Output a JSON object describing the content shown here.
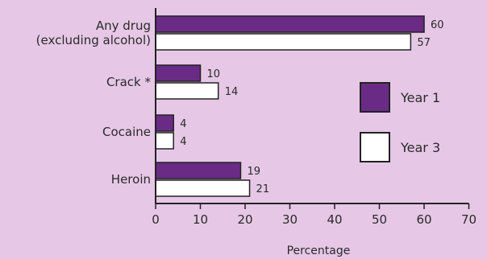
{
  "chart_data": {
    "type": "bar",
    "orientation": "horizontal",
    "categories": [
      [
        "Any drug",
        "(excluding alcohol)"
      ],
      [
        "Crack *"
      ],
      [
        "Cocaine"
      ],
      [
        "Heroin"
      ]
    ],
    "series": [
      {
        "name": "Year 1",
        "values": [
          60,
          10,
          4,
          19
        ],
        "color": "#6a2b86"
      },
      {
        "name": "Year 3",
        "values": [
          57,
          14,
          4,
          21
        ],
        "color": "#ffffff"
      }
    ],
    "xlabel": "Percentage",
    "xlim": [
      0,
      70
    ],
    "xticks": [
      0,
      10,
      20,
      30,
      40,
      50,
      60,
      70
    ],
    "grid": false,
    "legend_position": "right"
  }
}
